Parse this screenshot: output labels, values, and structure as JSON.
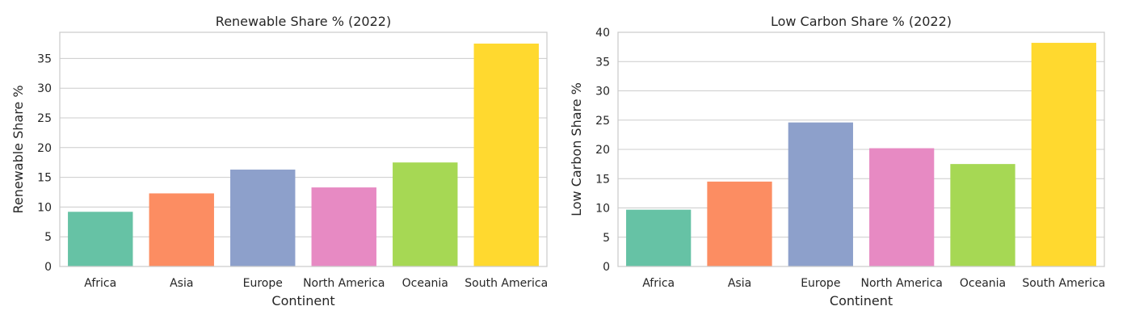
{
  "chart_data": [
    {
      "type": "bar",
      "title": "Renewable Share % (2022)",
      "xlabel": "Continent",
      "ylabel": "Renewable Share %",
      "categories": [
        "Africa",
        "Asia",
        "Europe",
        "North America",
        "Oceania",
        "South America"
      ],
      "values": [
        9.2,
        12.3,
        16.3,
        13.3,
        17.5,
        37.5
      ],
      "ylim": [
        0,
        39.4
      ],
      "yticks": [
        0,
        5,
        10,
        15,
        20,
        25,
        30,
        35
      ],
      "colors": [
        "#66c2a5",
        "#fc8d62",
        "#8da0cb",
        "#e78ac3",
        "#a6d854",
        "#ffd92f"
      ],
      "grid": true,
      "legend": "none"
    },
    {
      "type": "bar",
      "title": "Low Carbon Share % (2022)",
      "xlabel": "Continent",
      "ylabel": "Low Carbon Share %",
      "categories": [
        "Africa",
        "Asia",
        "Europe",
        "North America",
        "Oceania",
        "South America"
      ],
      "values": [
        9.7,
        14.5,
        24.6,
        20.2,
        17.5,
        38.2
      ],
      "ylim": [
        0,
        40
      ],
      "yticks": [
        0,
        5,
        10,
        15,
        20,
        25,
        30,
        35,
        40
      ],
      "colors": [
        "#66c2a5",
        "#fc8d62",
        "#8da0cb",
        "#e78ac3",
        "#a6d854",
        "#ffd92f"
      ],
      "grid": true,
      "legend": "none"
    }
  ]
}
